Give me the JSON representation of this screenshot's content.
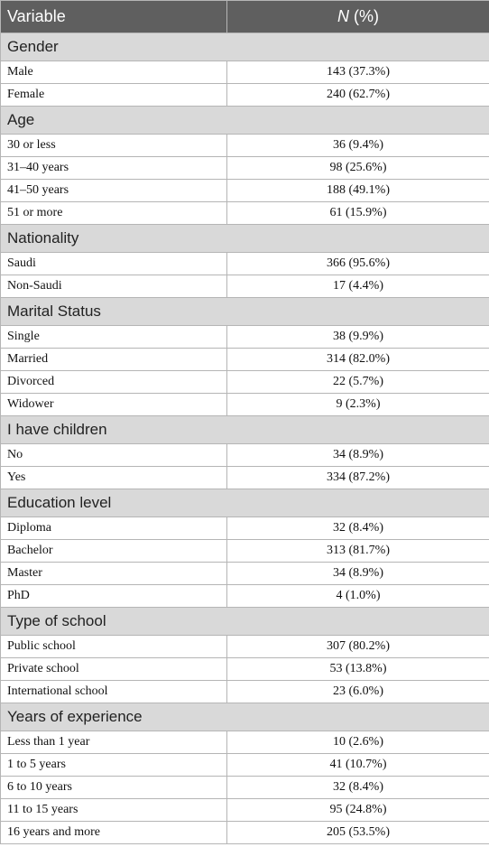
{
  "header": {
    "columns": [
      "Variable",
      "N (%)"
    ]
  },
  "sections": [
    {
      "title": "Gender",
      "rows": [
        [
          "Male",
          "143 (37.3%)"
        ],
        [
          "Female",
          "240 (62.7%)"
        ]
      ]
    },
    {
      "title": "Age",
      "rows": [
        [
          "30 or less",
          "36 (9.4%)"
        ],
        [
          "31–40 years",
          "98 (25.6%)"
        ],
        [
          "41–50 years",
          "188 (49.1%)"
        ],
        [
          "51 or more",
          "61 (15.9%)"
        ]
      ]
    },
    {
      "title": "Nationality",
      "rows": [
        [
          "Saudi",
          "366 (95.6%)"
        ],
        [
          "Non-Saudi",
          "17 (4.4%)"
        ]
      ]
    },
    {
      "title": "Marital Status",
      "rows": [
        [
          "Single",
          "38 (9.9%)"
        ],
        [
          "Married",
          "314 (82.0%)"
        ],
        [
          "Divorced",
          "22 (5.7%)"
        ],
        [
          "Widower",
          "9 (2.3%)"
        ]
      ]
    },
    {
      "title": "I have children",
      "rows": [
        [
          "No",
          "34 (8.9%)"
        ],
        [
          "Yes",
          "334 (87.2%)"
        ]
      ]
    },
    {
      "title": "Education level",
      "rows": [
        [
          "Diploma",
          "32 (8.4%)"
        ],
        [
          "Bachelor",
          "313 (81.7%)"
        ],
        [
          "Master",
          "34 (8.9%)"
        ],
        [
          "PhD",
          "4 (1.0%)"
        ]
      ]
    },
    {
      "title": "Type of school",
      "rows": [
        [
          "Public school",
          "307 (80.2%)"
        ],
        [
          "Private school",
          "53 (13.8%)"
        ],
        [
          "International school",
          "23 (6.0%)"
        ]
      ]
    },
    {
      "title": "Years of experience",
      "rows": [
        [
          "Less than 1 year",
          "10 (2.6%)"
        ],
        [
          "1 to 5 years",
          "41 (10.7%)"
        ],
        [
          "6 to 10 years",
          "32 (8.4%)"
        ],
        [
          "11 to 15 years",
          "95 (24.8%)"
        ],
        [
          "16 years and more",
          "205 (53.5%)"
        ]
      ]
    }
  ]
}
